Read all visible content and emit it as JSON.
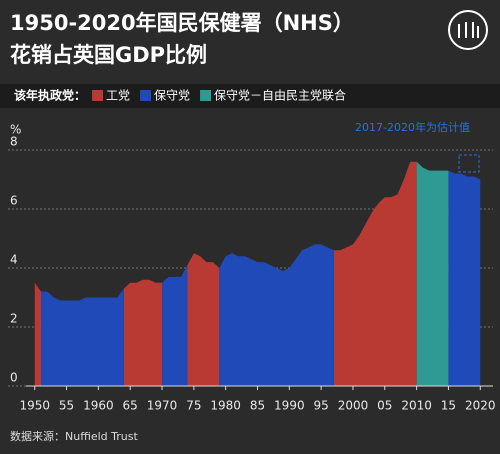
{
  "chart_data": {
    "type": "area",
    "title": "1950-2020年国民保健署（NHS）",
    "subtitle": "花销占英国GDP比例",
    "legend_title": "该年执政党：",
    "y_label": "%",
    "annotation": "2017-2020年为估计值",
    "source": "数据来源：Nuffield Trust",
    "x": [
      1950,
      1951,
      1952,
      1953,
      1954,
      1955,
      1956,
      1957,
      1958,
      1959,
      1960,
      1961,
      1962,
      1963,
      1964,
      1965,
      1966,
      1967,
      1968,
      1969,
      1970,
      1971,
      1972,
      1973,
      1974,
      1975,
      1976,
      1977,
      1978,
      1979,
      1980,
      1981,
      1982,
      1983,
      1984,
      1985,
      1986,
      1987,
      1988,
      1989,
      1990,
      1991,
      1992,
      1993,
      1994,
      1995,
      1996,
      1997,
      1998,
      1999,
      2000,
      2001,
      2002,
      2003,
      2004,
      2005,
      2006,
      2007,
      2008,
      2009,
      2010,
      2011,
      2012,
      2013,
      2014,
      2015,
      2016,
      2017,
      2018,
      2019,
      2020
    ],
    "series": [
      {
        "name": "工党",
        "color": "#b83a33",
        "values": [
          3.5,
          3.2,
          null,
          null,
          null,
          null,
          null,
          null,
          null,
          null,
          null,
          null,
          null,
          null,
          3.3,
          3.5,
          3.5,
          3.6,
          3.6,
          3.5,
          3.5,
          null,
          null,
          null,
          4.1,
          4.5,
          4.4,
          4.2,
          4.2,
          4.0,
          null,
          null,
          null,
          null,
          null,
          null,
          null,
          null,
          null,
          null,
          null,
          null,
          null,
          null,
          null,
          null,
          null,
          4.6,
          4.6,
          4.7,
          4.8,
          5.1,
          5.5,
          5.9,
          6.2,
          6.4,
          6.4,
          6.5,
          7.0,
          7.6,
          7.6,
          null,
          null,
          null,
          null,
          null,
          null,
          null,
          null,
          null,
          null
        ]
      },
      {
        "name": "保守党",
        "color": "#1f4ab8",
        "values": [
          null,
          3.2,
          3.2,
          3.0,
          2.9,
          2.9,
          2.9,
          2.9,
          3.0,
          3.0,
          3.0,
          3.0,
          3.0,
          3.0,
          3.3,
          null,
          null,
          null,
          null,
          null,
          3.5,
          3.7,
          3.7,
          3.7,
          4.1,
          null,
          null,
          null,
          null,
          4.0,
          4.4,
          4.5,
          4.4,
          4.4,
          4.3,
          4.2,
          4.2,
          4.1,
          4.0,
          3.9,
          4.0,
          4.3,
          4.6,
          4.7,
          4.8,
          4.8,
          4.7,
          4.6,
          null,
          null,
          null,
          null,
          null,
          null,
          null,
          null,
          null,
          null,
          null,
          null,
          null,
          null,
          null,
          null,
          null,
          7.3,
          7.2,
          7.2,
          7.1,
          7.1,
          7.0
        ]
      },
      {
        "name": "保守党－自由民主党联合",
        "color": "#2e9a92",
        "values": [
          null,
          null,
          null,
          null,
          null,
          null,
          null,
          null,
          null,
          null,
          null,
          null,
          null,
          null,
          null,
          null,
          null,
          null,
          null,
          null,
          null,
          null,
          null,
          null,
          null,
          null,
          null,
          null,
          null,
          null,
          null,
          null,
          null,
          null,
          null,
          null,
          null,
          null,
          null,
          null,
          null,
          null,
          null,
          null,
          null,
          null,
          null,
          null,
          null,
          null,
          null,
          null,
          null,
          null,
          null,
          null,
          null,
          null,
          null,
          null,
          7.6,
          7.4,
          7.3,
          7.3,
          7.3,
          7.3,
          null,
          null,
          null,
          null,
          null
        ]
      }
    ],
    "xlim": [
      1948,
      2022
    ],
    "xticks": [
      1950,
      {
        "value": 1955,
        "label": "55"
      },
      1960,
      {
        "value": 1965,
        "label": "65"
      },
      1970,
      {
        "value": 1975,
        "label": "75"
      },
      1980,
      {
        "value": 1985,
        "label": "85"
      },
      1990,
      {
        "value": 1995,
        "label": "95"
      },
      2000,
      {
        "value": 2005,
        "label": "05"
      },
      2010,
      {
        "value": 2015,
        "label": "15"
      },
      2020
    ],
    "ylim": [
      0,
      8
    ],
    "yticks": [
      0,
      2,
      4,
      6,
      8
    ],
    "grid": true
  }
}
